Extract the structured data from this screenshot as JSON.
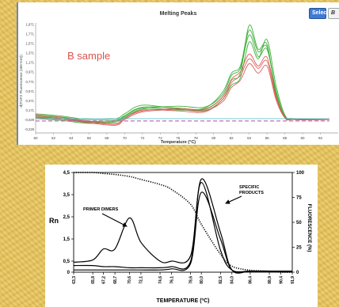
{
  "chart_data": [
    {
      "type": "line",
      "title": "Melting Peaks",
      "annotation": "B sample",
      "xlabel": "Temperature (°C)",
      "ylabel": "-d(F1/F2 Fluorescence (465-510))",
      "x_ticks": [
        "60",
        "62",
        "64",
        "66",
        "68",
        "70",
        "72",
        "74",
        "76",
        "78",
        "80",
        "82",
        "84",
        "86",
        "88",
        "90",
        "92"
      ],
      "y_ticks": [
        "1,971",
        "1,771",
        "1,571",
        "1,371",
        "1,171",
        "0,971",
        "0,771",
        "0,571",
        "0,371",
        "0,171",
        "-0,029",
        "-0,229"
      ],
      "xlim": [
        60,
        94
      ],
      "ylim": [
        -0.3,
        2.0
      ],
      "grid": false,
      "buttons": {
        "select": "Select",
        "next": "B"
      },
      "colors": {
        "green": "#2faa2a",
        "red": "#d9534f",
        "baseline": "#4fc3c8",
        "dashed": "#b45fb4",
        "annotation": "#d9534f"
      },
      "series": [
        {
          "color": "green",
          "x": [
            60,
            63,
            66,
            69,
            70,
            72,
            76,
            79,
            81,
            82,
            83,
            84,
            85,
            86,
            87,
            88,
            89,
            93
          ],
          "y": [
            0.06,
            0.02,
            -0.06,
            -0.03,
            0.06,
            0.24,
            0.22,
            0.19,
            0.45,
            0.8,
            0.95,
            1.95,
            1.45,
            1.55,
            0.5,
            0.02,
            -0.02,
            -0.02
          ]
        },
        {
          "color": "green",
          "x": [
            60,
            63,
            66,
            69,
            70,
            72,
            76,
            79,
            81,
            82,
            83,
            84,
            85,
            86,
            87,
            88,
            89,
            93
          ],
          "y": [
            0.0,
            -0.04,
            -0.1,
            -0.07,
            0.03,
            0.2,
            0.26,
            0.24,
            0.5,
            0.9,
            1.05,
            1.75,
            1.3,
            1.45,
            0.6,
            0.05,
            -0.01,
            -0.02
          ]
        },
        {
          "color": "green",
          "x": [
            60,
            63,
            66,
            69,
            70,
            72,
            76,
            79,
            81,
            82,
            83,
            84,
            85,
            86,
            87,
            88,
            89,
            93
          ],
          "y": [
            0.1,
            0.05,
            -0.02,
            0.0,
            0.1,
            0.28,
            0.2,
            0.16,
            0.4,
            0.7,
            0.85,
            1.6,
            1.25,
            1.65,
            0.7,
            0.08,
            0.0,
            -0.02
          ]
        },
        {
          "color": "green",
          "x": [
            60,
            63,
            66,
            69,
            70,
            72,
            76,
            79,
            81,
            82,
            83,
            84,
            85,
            86,
            87,
            88,
            89,
            93
          ],
          "y": [
            0.03,
            0.0,
            -0.08,
            -0.05,
            0.05,
            0.22,
            0.18,
            0.22,
            0.55,
            0.95,
            1.1,
            1.85,
            1.4,
            1.5,
            0.55,
            0.03,
            -0.01,
            -0.02
          ]
        },
        {
          "color": "red",
          "x": [
            60,
            63,
            66,
            69,
            70,
            72,
            76,
            79,
            81,
            82,
            83,
            84,
            85,
            86,
            87,
            88,
            89,
            93
          ],
          "y": [
            0.08,
            0.03,
            -0.05,
            -0.1,
            0.0,
            0.18,
            0.16,
            0.14,
            0.4,
            0.75,
            0.9,
            1.25,
            1.05,
            1.2,
            0.45,
            0.04,
            -0.02,
            -0.02
          ]
        },
        {
          "color": "red",
          "x": [
            60,
            63,
            66,
            69,
            70,
            72,
            76,
            79,
            81,
            82,
            83,
            84,
            85,
            86,
            87,
            88,
            89,
            93
          ],
          "y": [
            0.02,
            -0.02,
            -0.09,
            -0.14,
            -0.02,
            0.14,
            0.19,
            0.17,
            0.35,
            0.65,
            0.8,
            1.15,
            0.95,
            1.1,
            0.4,
            0.02,
            -0.02,
            -0.02
          ]
        },
        {
          "color": "red",
          "x": [
            60,
            63,
            66,
            69,
            70,
            72,
            76,
            79,
            81,
            82,
            83,
            84,
            85,
            86,
            87,
            88,
            89,
            93
          ],
          "y": [
            0.05,
            0.0,
            -0.07,
            -0.12,
            0.01,
            0.16,
            0.21,
            0.2,
            0.45,
            0.82,
            0.98,
            1.35,
            1.1,
            1.28,
            0.48,
            0.03,
            -0.02,
            -0.02
          ]
        },
        {
          "color": "baseline",
          "x": [
            60,
            93
          ],
          "y": [
            0.0,
            0.0
          ]
        },
        {
          "color": "dashed",
          "x": [
            60,
            93
          ],
          "y": [
            -0.05,
            -0.05
          ]
        }
      ]
    },
    {
      "type": "line",
      "xlabel": "TEMPERATURE (ºC)",
      "ylabel": "Rn",
      "y2label": "FLUORESCENCE (%)",
      "x_ticks": [
        "63,3",
        "65,8",
        "67,2",
        "68,7",
        "70,6",
        "72,1",
        "74,6",
        "76,1",
        "78,6",
        "80,0",
        "82,5",
        "84,0",
        "86,4",
        "88,9",
        "90,4",
        "91,9"
      ],
      "y_ticks": [
        "0",
        "0,5",
        "1,5",
        "2,5",
        "3,5",
        "4,5"
      ],
      "y2_ticks": [
        "0",
        "25",
        "50",
        "75",
        "100"
      ],
      "ylim": [
        0,
        4.5
      ],
      "y2lim": [
        0,
        100
      ],
      "grid": false,
      "annotations": {
        "primer_dimers": "PRIMER DIMERS",
        "specific_line1": "SPECIFIC",
        "specific_line2": "PRODUCTS"
      },
      "series": [
        {
          "style": "solid",
          "x": [
            63.3,
            65.8,
            67.2,
            68.7,
            70.6,
            72.1,
            74.6,
            76.1,
            78.6,
            80.0,
            82.5,
            84.0,
            86.4,
            88.9,
            90.4,
            91.9
          ],
          "y": [
            0.45,
            0.55,
            1.05,
            1.05,
            2.45,
            1.35,
            0.5,
            0.5,
            0.75,
            4.05,
            1.0,
            0.1,
            0.05,
            0.05,
            0.05,
            0.05
          ]
        },
        {
          "style": "solid",
          "x": [
            63.3,
            65.8,
            67.2,
            68.7,
            70.6,
            72.1,
            74.6,
            76.1,
            78.6,
            80.0,
            82.5,
            84.0,
            86.4,
            88.9,
            90.4,
            91.9
          ],
          "y": [
            0.3,
            0.3,
            0.25,
            0.25,
            0.2,
            0.2,
            0.2,
            0.25,
            0.5,
            4.2,
            1.8,
            0.1,
            0.05,
            0.05,
            0.05,
            0.05
          ]
        },
        {
          "style": "solid",
          "x": [
            63.3,
            65.8,
            67.2,
            68.7,
            70.6,
            72.1,
            74.6,
            76.1,
            78.6,
            80.0,
            82.5,
            84.0,
            86.4,
            88.9,
            90.4,
            91.9
          ],
          "y": [
            0.1,
            0.1,
            0.1,
            0.1,
            0.1,
            0.1,
            0.1,
            0.15,
            0.4,
            3.6,
            1.5,
            0.1,
            0.05,
            0.05,
            0.05,
            0.05
          ]
        },
        {
          "style": "dotted",
          "axis": "y2",
          "x": [
            63.3,
            65.8,
            67.2,
            68.7,
            70.6,
            72.1,
            74.6,
            76.1,
            78.6,
            80.0,
            82.5,
            84.0,
            86.4,
            88.9,
            90.4,
            91.9
          ],
          "y": [
            100,
            100,
            99,
            98,
            96,
            93,
            88,
            83,
            68,
            48,
            18,
            6,
            2,
            1,
            0,
            0
          ]
        }
      ]
    }
  ]
}
